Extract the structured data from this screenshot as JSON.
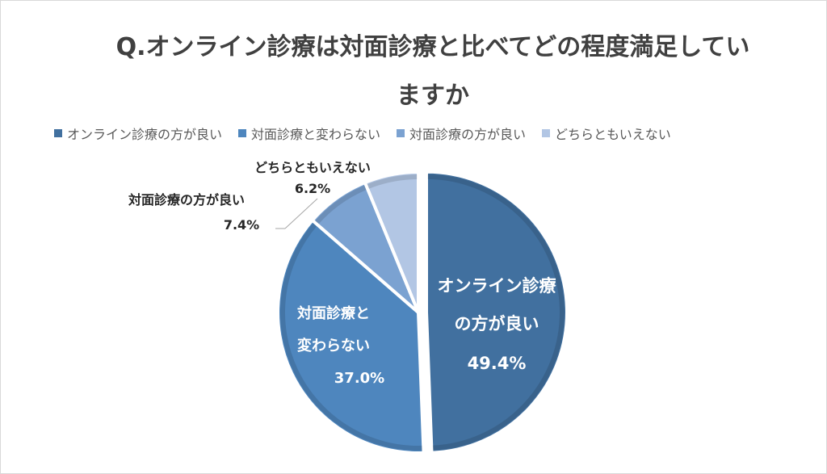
{
  "chart_data": {
    "type": "pie",
    "title_line1": "Q.オンライン診療は対面診療と比べてどの程度満足してい",
    "title_line2": "ますか",
    "categories": [
      "オンライン診療の方が良い",
      "対面診療と変わらない",
      "対面診療の方が良い",
      "どちらともいえない"
    ],
    "values": [
      49.4,
      37.0,
      7.4,
      6.2
    ],
    "value_labels": [
      "49.4%",
      "37.0%",
      "7.4%",
      "6.2%"
    ],
    "colors": [
      "#41709f",
      "#4e86be",
      "#7ba2d1",
      "#b2c6e4"
    ],
    "slice_labels": {
      "s0_line1": "オンライン診療",
      "s0_line2": "の方が良い",
      "s1_line1": "対面診療と",
      "s1_line2": "変わらない",
      "s2_line1": "対面診療の方が良い",
      "s3_line1": "どちらともいえない"
    },
    "legend_position": "top"
  }
}
